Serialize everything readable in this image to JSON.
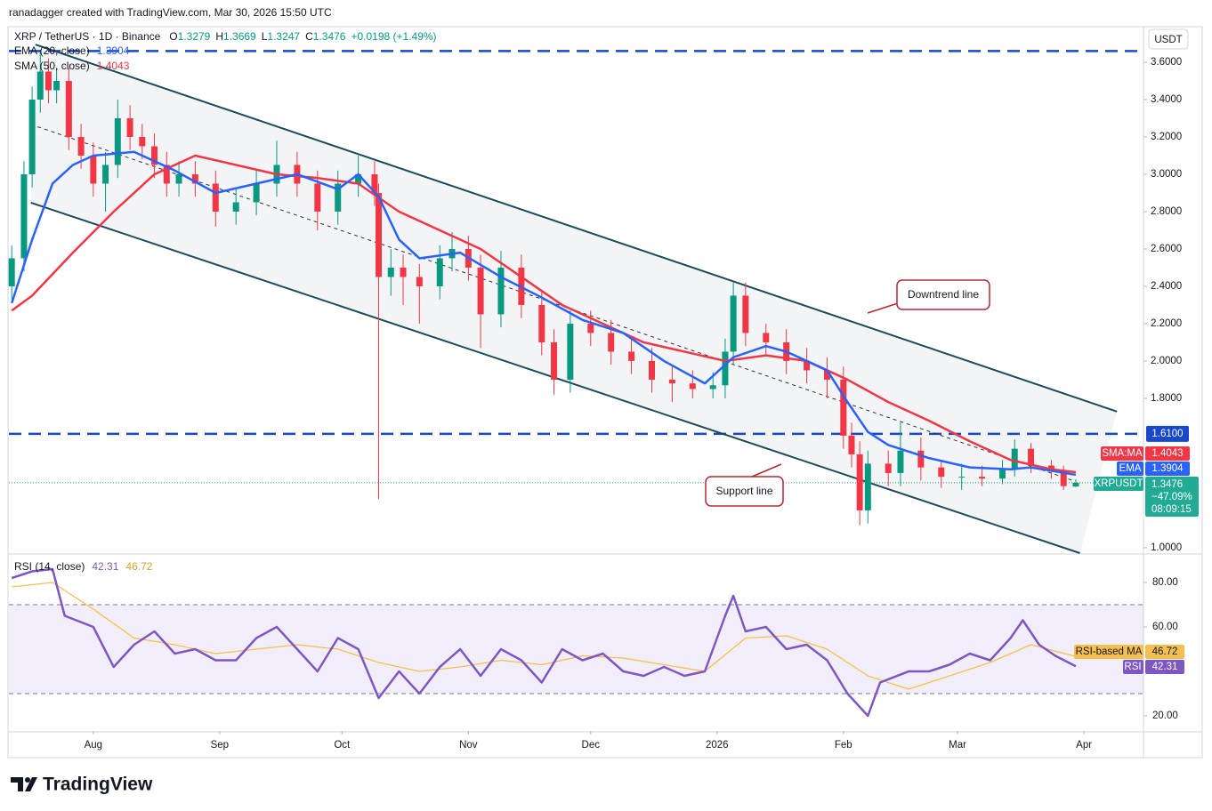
{
  "header": "ranadagger created with TradingView.com, Mar 30, 2026 15:50 UTC",
  "brand": "TradingView",
  "chart_data": {
    "type": "candlestick",
    "currency": "USDT",
    "legend": {
      "symbol": "XRP / TetherUS · 1D · Binance",
      "letters": [
        "O",
        "H",
        "L",
        "C"
      ],
      "change": "+0.0198 (+1.49%)",
      "ema": "EMA (20, close)",
      "sma": "SMA (50, close)",
      "rsi": "RSI (14, close)"
    },
    "colors": {
      "up": "#089981",
      "down": "#f23645",
      "ema": "#2962ff",
      "sma": "#f23645",
      "rsi": "#7e57c2",
      "rsi_ma": "#f5bf4f",
      "trend": "#1e4b5c",
      "level": "#1848cc",
      "annotation": "#b22833"
    },
    "xlim": [
      -20.7,
      257.6
    ],
    "xticks": [
      {
        "value": 0,
        "label": "Aug"
      },
      {
        "value": 31,
        "label": "Sep"
      },
      {
        "value": 61,
        "label": "Oct"
      },
      {
        "value": 92,
        "label": "Nov"
      },
      {
        "value": 122,
        "label": "Dec"
      },
      {
        "value": 153,
        "label": "2026"
      },
      {
        "value": 184,
        "label": "Feb"
      },
      {
        "value": 212,
        "label": "Mar"
      },
      {
        "value": 243,
        "label": "Apr"
      }
    ],
    "ylim": [
      0.971,
      3.781
    ],
    "yticks": [
      {
        "value": 1,
        "label": "1.0000"
      },
      {
        "value": 1.8,
        "label": "1.8000"
      },
      {
        "value": 2,
        "label": "2.0000"
      },
      {
        "value": 2.2,
        "label": "2.2000"
      },
      {
        "value": 2.4,
        "label": "2.4000"
      },
      {
        "value": 2.6,
        "label": "2.6000"
      },
      {
        "value": 2.8,
        "label": "2.8000"
      },
      {
        "value": 3,
        "label": "3.0000"
      },
      {
        "value": 3.2,
        "label": "3.2000"
      },
      {
        "value": 3.4,
        "label": "3.4000"
      },
      {
        "value": 3.6,
        "label": "3.6000"
      }
    ],
    "x": [
      -20,
      -17,
      -15,
      -13,
      -11,
      -9,
      -6,
      -3,
      0,
      3,
      6,
      9,
      12,
      15,
      18,
      21,
      25,
      30,
      35,
      40,
      45,
      50,
      55,
      60,
      65,
      69,
      70,
      73,
      76,
      80,
      85,
      88,
      92,
      95,
      100,
      105,
      110,
      113,
      117,
      122,
      127,
      132,
      137,
      142,
      147,
      152,
      155,
      157,
      160,
      165,
      170,
      175,
      180,
      184,
      186,
      188,
      190,
      195,
      198,
      203,
      208,
      213,
      218,
      223,
      226,
      230,
      235,
      238,
      241
    ],
    "open": [
      2.4,
      2.55,
      3.0,
      3.4,
      3.55,
      3.45,
      3.5,
      3.2,
      3.1,
      2.95,
      3.05,
      3.3,
      3.2,
      3.15,
      3.05,
      2.95,
      3.0,
      2.95,
      2.8,
      2.85,
      2.95,
      3.05,
      2.95,
      2.8,
      2.95,
      3.0,
      2.9,
      2.45,
      2.5,
      2.45,
      2.4,
      2.55,
      2.6,
      2.5,
      2.25,
      2.5,
      2.3,
      2.1,
      1.9,
      2.2,
      2.15,
      2.05,
      2.0,
      1.9,
      1.88,
      1.85,
      1.87,
      2.05,
      2.35,
      2.15,
      2.1,
      2.0,
      1.95,
      1.9,
      1.6,
      1.5,
      1.2,
      1.45,
      1.4,
      1.52,
      1.43,
      1.38,
      1.38,
      1.37,
      1.42,
      1.53,
      1.44,
      1.41,
      1.3279
    ],
    "high": [
      2.62,
      3.07,
      3.47,
      3.66,
      3.62,
      3.57,
      3.57,
      3.27,
      3.17,
      3.12,
      3.4,
      3.37,
      3.27,
      3.22,
      3.12,
      3.07,
      3.07,
      3.02,
      2.92,
      3.02,
      3.18,
      3.12,
      3.02,
      3.02,
      3.1,
      3.07,
      2.95,
      2.6,
      2.57,
      2.52,
      2.62,
      2.69,
      2.67,
      2.57,
      2.59,
      2.57,
      2.37,
      2.17,
      2.27,
      2.27,
      2.22,
      2.12,
      2.07,
      1.97,
      1.95,
      1.94,
      2.12,
      2.42,
      2.42,
      2.2,
      2.17,
      2.07,
      2.02,
      1.97,
      1.67,
      1.57,
      1.52,
      1.52,
      1.67,
      1.59,
      1.47,
      1.45,
      1.44,
      1.47,
      1.58,
      1.56,
      1.47,
      1.44,
      1.3669
    ],
    "low": [
      2.33,
      2.48,
      2.93,
      3.33,
      3.38,
      3.38,
      3.13,
      3.03,
      2.88,
      2.8,
      2.98,
      3.13,
      3.08,
      2.98,
      2.88,
      2.88,
      2.88,
      2.72,
      2.73,
      2.78,
      2.88,
      2.88,
      2.7,
      2.73,
      2.88,
      2.83,
      1.26,
      2.35,
      2.3,
      2.2,
      2.33,
      2.48,
      2.43,
      2.07,
      2.18,
      2.23,
      2.03,
      1.82,
      1.83,
      2.08,
      1.98,
      1.93,
      1.83,
      1.78,
      1.8,
      1.8,
      1.8,
      1.98,
      2.08,
      2.03,
      1.93,
      1.88,
      1.8,
      1.53,
      1.43,
      1.12,
      1.13,
      1.33,
      1.33,
      1.36,
      1.32,
      1.31,
      1.33,
      1.34,
      1.38,
      1.4,
      1.37,
      1.31,
      1.3247
    ],
    "close": [
      2.55,
      3.0,
      3.4,
      3.55,
      3.45,
      3.5,
      3.2,
      3.1,
      2.95,
      3.05,
      3.3,
      3.2,
      3.15,
      3.05,
      2.95,
      3.0,
      2.95,
      2.8,
      2.85,
      2.95,
      3.05,
      2.95,
      2.8,
      2.95,
      3.0,
      2.9,
      2.45,
      2.5,
      2.45,
      2.4,
      2.55,
      2.6,
      2.5,
      2.25,
      2.5,
      2.3,
      2.1,
      1.9,
      2.2,
      2.15,
      2.05,
      2.0,
      1.9,
      1.88,
      1.85,
      1.87,
      2.05,
      2.35,
      2.15,
      2.1,
      2.0,
      1.95,
      1.9,
      1.6,
      1.5,
      1.2,
      1.45,
      1.4,
      1.52,
      1.43,
      1.38,
      1.38,
      1.37,
      1.42,
      1.53,
      1.44,
      1.41,
      1.33,
      1.3476
    ],
    "ema": {
      "name": "EMA",
      "x": [
        -20,
        -15,
        -10,
        -5,
        0,
        10,
        20,
        30,
        40,
        50,
        60,
        65,
        70,
        75,
        80,
        90,
        100,
        110,
        120,
        130,
        140,
        150,
        157,
        165,
        170,
        180,
        185,
        190,
        195,
        205,
        215,
        225,
        230,
        241
      ],
      "values": [
        2.31,
        2.65,
        2.95,
        3.05,
        3.1,
        3.12,
        3.02,
        2.9,
        2.95,
        3.0,
        2.92,
        3.0,
        2.88,
        2.65,
        2.55,
        2.58,
        2.45,
        2.34,
        2.22,
        2.15,
        2.0,
        1.88,
        2.02,
        2.08,
        2.05,
        1.95,
        1.78,
        1.62,
        1.55,
        1.48,
        1.43,
        1.42,
        1.43,
        1.3904
      ]
    },
    "sma": {
      "name": "SMA:MA",
      "x": [
        -20,
        -15,
        -5,
        5,
        15,
        25,
        35,
        45,
        55,
        65,
        75,
        85,
        95,
        105,
        115,
        125,
        135,
        145,
        155,
        165,
        175,
        185,
        195,
        205,
        215,
        225,
        235,
        241
      ],
      "values": [
        2.27,
        2.35,
        2.58,
        2.8,
        3.0,
        3.1,
        3.05,
        3.0,
        2.98,
        2.95,
        2.8,
        2.7,
        2.6,
        2.45,
        2.3,
        2.2,
        2.1,
        2.05,
        2.0,
        2.03,
        2.0,
        1.9,
        1.78,
        1.68,
        1.57,
        1.47,
        1.42,
        1.4043
      ]
    },
    "price_tag": {
      "symbol": "XRPUSDT",
      "change": "−47.09%",
      "countdown": "08:09:15"
    },
    "levels": [
      3.66,
      {
        "value": 1.61,
        "label": "1.6100"
      }
    ],
    "trendlines": [
      {
        "name": "Downtrend line",
        "points": [
          [
            -14.2,
            3.695
          ],
          [
            251.1,
            1.729
          ]
        ]
      },
      {
        "name": "Support line",
        "points": [
          [
            -15.3,
            2.848
          ],
          [
            242,
            0.971
          ]
        ]
      },
      {
        "points": [
          [
            -15.3,
            3.267
          ],
          [
            240,
            1.362
          ]
        ]
      }
    ],
    "rsi": {
      "name": "RSI",
      "x": [
        -20,
        -15,
        -10,
        -7,
        0,
        5,
        10,
        15,
        20,
        25,
        30,
        35,
        40,
        45,
        50,
        55,
        60,
        65,
        70,
        75,
        80,
        85,
        90,
        95,
        100,
        105,
        110,
        115,
        120,
        125,
        130,
        135,
        140,
        145,
        150,
        155,
        157,
        160,
        165,
        170,
        175,
        180,
        185,
        190,
        193,
        200,
        205,
        210,
        215,
        220,
        225,
        228,
        232,
        236,
        241
      ],
      "values": [
        82,
        85,
        86,
        65,
        60,
        42,
        52,
        58,
        48,
        50,
        45,
        45,
        55,
        60,
        50,
        40,
        55,
        50,
        28,
        40,
        30,
        42,
        50,
        38,
        50,
        45,
        35,
        50,
        45,
        48,
        40,
        38,
        42,
        38,
        40,
        65,
        74,
        58,
        60,
        50,
        52,
        45,
        30,
        20,
        35,
        40,
        40,
        43,
        48,
        45,
        55,
        63,
        52,
        47,
        42.31
      ]
    },
    "rsi_ma": {
      "name": "RSI-based MA",
      "x": [
        -20,
        -10,
        0,
        10,
        20,
        30,
        40,
        50,
        60,
        70,
        80,
        90,
        100,
        110,
        120,
        130,
        140,
        150,
        160,
        170,
        180,
        190,
        200,
        210,
        220,
        230,
        241
      ],
      "values": [
        78,
        80,
        68,
        55,
        52,
        48,
        50,
        52,
        50,
        44,
        40,
        42,
        45,
        43,
        47,
        46,
        43,
        40,
        55,
        56,
        50,
        38,
        32,
        38,
        44,
        52,
        46.72
      ]
    },
    "rsi_ylim": [
      13.2,
      92
    ],
    "rsi_yticks": [
      {
        "value": 80,
        "label": "80.00"
      },
      {
        "value": 60,
        "label": "60.00"
      },
      {
        "value": 20,
        "label": "20.00"
      }
    ],
    "rsi_bands": [
      30,
      70
    ]
  }
}
